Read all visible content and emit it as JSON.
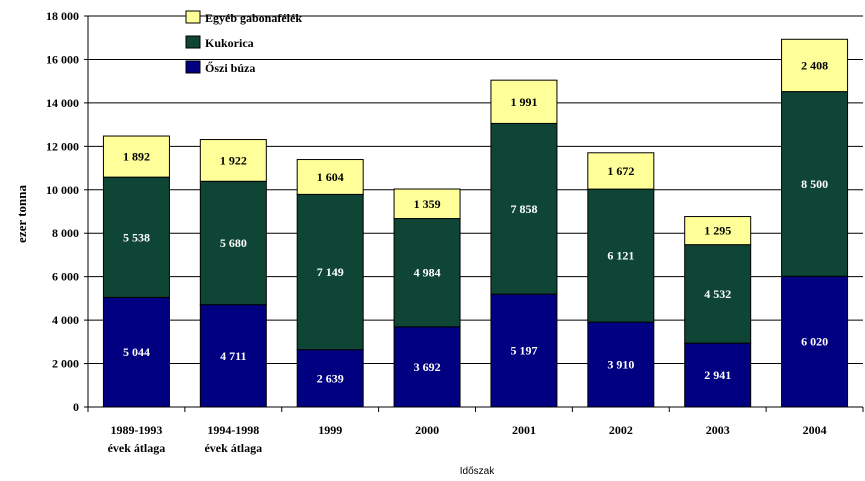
{
  "chart_data": {
    "type": "bar",
    "stacked": true,
    "categories": [
      [
        "1989-1993",
        "évek átlaga"
      ],
      [
        "1994-1998",
        "évek átlaga"
      ],
      [
        "1999"
      ],
      [
        "2000"
      ],
      [
        "2001"
      ],
      [
        "2002"
      ],
      [
        "2003"
      ],
      [
        "2004"
      ]
    ],
    "series": [
      {
        "name": "Őszi búza",
        "color": "#000080",
        "label_color": "#ffffff",
        "values": [
          5044,
          4711,
          2639,
          3692,
          5197,
          3910,
          2941,
          6020
        ],
        "labels": [
          "5 044",
          "4 711",
          "2 639",
          "3 692",
          "5 197",
          "3 910",
          "2 941",
          "6 020"
        ]
      },
      {
        "name": "Kukorica",
        "color": "#0f4535",
        "label_color": "#ffffff",
        "values": [
          5538,
          5680,
          7149,
          4984,
          7858,
          6121,
          4532,
          8500
        ],
        "labels": [
          "5 538",
          "5 680",
          "7 149",
          "4 984",
          "7 858",
          "6 121",
          "4 532",
          "8 500"
        ]
      },
      {
        "name": "Egyéb gabonafélék",
        "color": "#ffff99",
        "label_color": "#000000",
        "values": [
          1892,
          1922,
          1604,
          1359,
          1991,
          1672,
          1295,
          2408
        ],
        "labels": [
          "1 892",
          "1 922",
          "1 604",
          "1 359",
          "1 991",
          "1 672",
          "1 295",
          "2 408"
        ]
      }
    ],
    "legend_order": [
      2,
      1,
      0
    ],
    "yticks": [
      0,
      2000,
      4000,
      6000,
      8000,
      10000,
      12000,
      14000,
      16000,
      18000
    ],
    "ytick_labels": [
      "0",
      "2 000",
      "4 000",
      "6 000",
      "8 000",
      "10 000",
      "12 000",
      "14 000",
      "16 000",
      "18 000"
    ],
    "ylim": [
      0,
      18000
    ],
    "ylabel": "ezer tonna",
    "xlabel": "Időszak",
    "legend_position": "top-left",
    "grid": "horizontal"
  }
}
